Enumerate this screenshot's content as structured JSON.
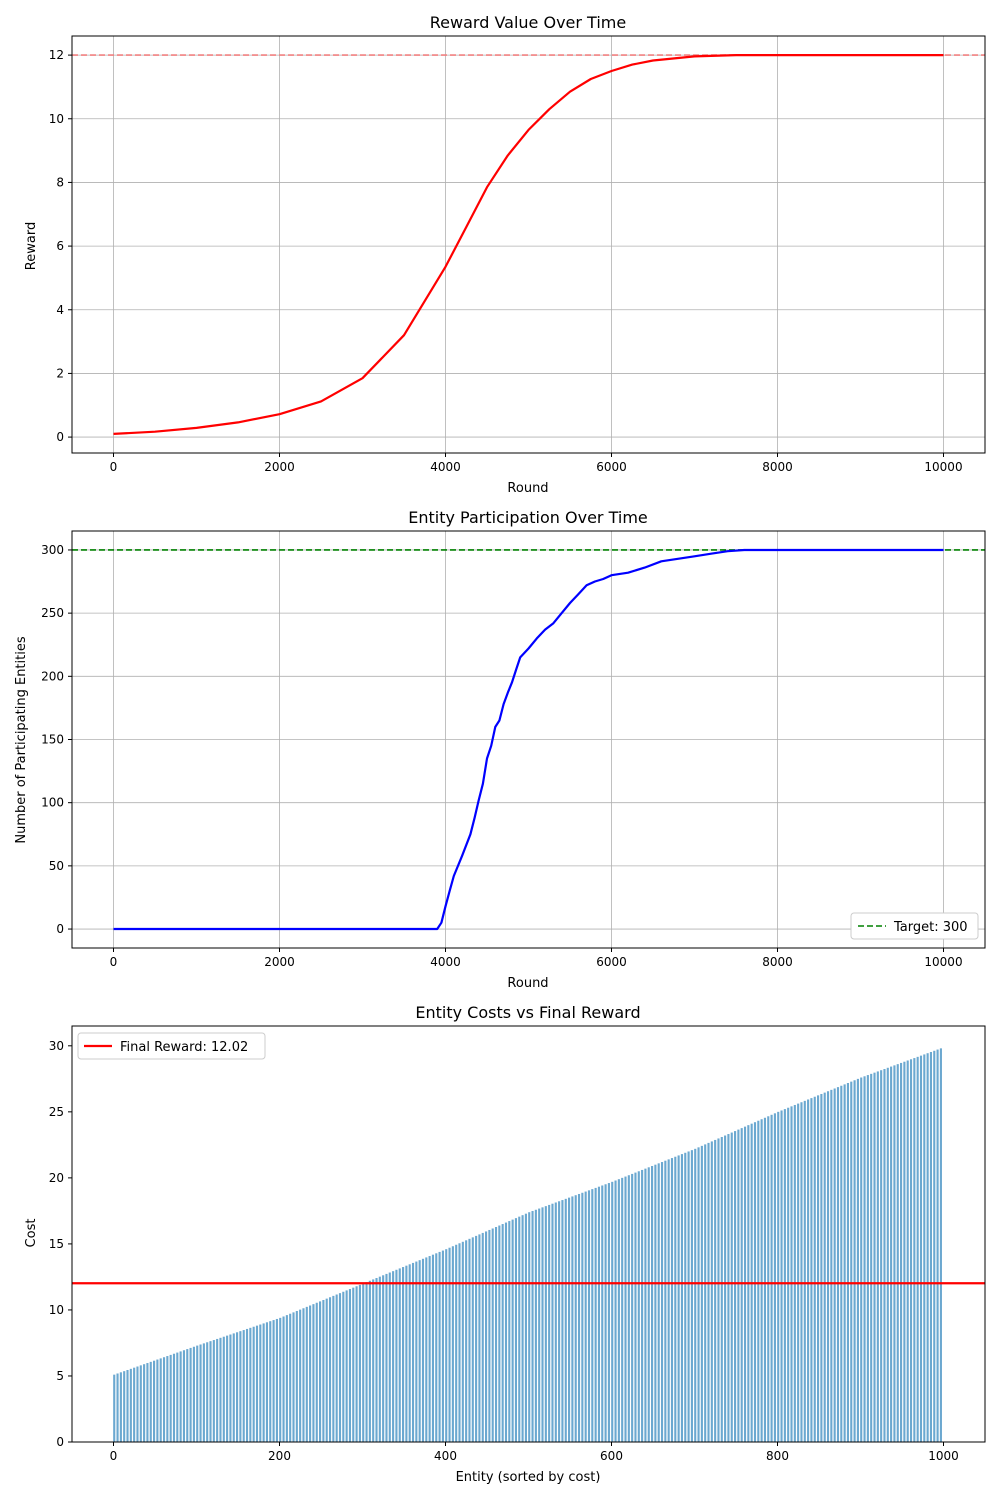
{
  "figure": {
    "background": "#ffffff",
    "colors": {
      "reward_line": "#ff0000",
      "reward_ref_line": "#f08080",
      "participation_line": "#0000ff",
      "target_line": "#008000",
      "cost_bars": "#5b9fcb",
      "final_reward_line": "#ff0000",
      "grid": "#b0b0b0"
    }
  },
  "chart_data": [
    {
      "type": "line",
      "title": "Reward Value Over Time",
      "xlabel": "Round",
      "ylabel": "Reward",
      "xlim": [
        -500,
        10500
      ],
      "ylim": [
        -0.5,
        12.6
      ],
      "xticks": [
        0,
        2000,
        4000,
        6000,
        8000,
        10000
      ],
      "yticks": [
        0,
        2,
        4,
        6,
        8,
        10,
        12
      ],
      "grid": true,
      "reference_line": {
        "y": 12,
        "style": "dashed"
      },
      "series": [
        {
          "x": [
            0,
            500,
            1000,
            1500,
            2000,
            2500,
            3000,
            3500,
            4000,
            4250,
            4500,
            4750,
            5000,
            5250,
            5500,
            5750,
            6000,
            6250,
            6500,
            7000,
            7500,
            8000,
            9000,
            10000
          ],
          "values": [
            0.1,
            0.17,
            0.29,
            0.46,
            0.72,
            1.12,
            1.85,
            3.2,
            5.35,
            6.6,
            7.85,
            8.85,
            9.65,
            10.3,
            10.85,
            11.25,
            11.5,
            11.7,
            11.83,
            11.96,
            12.0,
            12.0,
            12.0,
            12.0
          ]
        }
      ]
    },
    {
      "type": "line",
      "title": "Entity Participation Over Time",
      "xlabel": "Round",
      "ylabel": "Number of Participating Entities",
      "xlim": [
        -500,
        10500
      ],
      "ylim": [
        -15,
        315
      ],
      "xticks": [
        0,
        2000,
        4000,
        6000,
        8000,
        10000
      ],
      "yticks": [
        0,
        50,
        100,
        150,
        200,
        250,
        300
      ],
      "grid": true,
      "legend_position": "lower-right",
      "reference_line": {
        "y": 300,
        "style": "dashed",
        "legend": "Target: 300"
      },
      "series": [
        {
          "x": [
            0,
            3000,
            3900,
            3950,
            4000,
            4050,
            4100,
            4200,
            4300,
            4350,
            4400,
            4450,
            4500,
            4550,
            4600,
            4650,
            4700,
            4750,
            4800,
            4850,
            4900,
            5000,
            5100,
            5200,
            5300,
            5400,
            5500,
            5600,
            5700,
            5800,
            5900,
            6000,
            6200,
            6400,
            6600,
            6800,
            7000,
            7200,
            7400,
            7600,
            8000,
            9000,
            10000
          ],
          "values": [
            0,
            0,
            0,
            5,
            18,
            30,
            42,
            58,
            75,
            88,
            102,
            115,
            135,
            145,
            160,
            165,
            178,
            187,
            195,
            205,
            215,
            222,
            230,
            237,
            242,
            250,
            258,
            265,
            272,
            275,
            277,
            280,
            282,
            286,
            291,
            293,
            295,
            297,
            299,
            300,
            300,
            300,
            300
          ]
        }
      ]
    },
    {
      "type": "bar",
      "title": "Entity Costs vs Final Reward",
      "xlabel": "Entity (sorted by cost)",
      "ylabel": "Cost",
      "xlim": [
        -50,
        1050
      ],
      "ylim": [
        0,
        31.5
      ],
      "xticks": [
        0,
        200,
        400,
        600,
        800,
        1000
      ],
      "yticks": [
        0,
        5,
        10,
        15,
        20,
        25,
        30
      ],
      "grid": false,
      "legend_position": "top-left",
      "bar_count": 1000,
      "bar_step": 4,
      "cost_profile": {
        "x": [
          0,
          100,
          200,
          300,
          400,
          500,
          600,
          700,
          800,
          900,
          1000
        ],
        "values": [
          5.1,
          7.3,
          9.4,
          12.0,
          14.6,
          17.4,
          19.7,
          22.2,
          25.0,
          27.6,
          29.9
        ]
      },
      "reference_line": {
        "y": 12.02,
        "style": "solid",
        "legend": "Final Reward: 12.02"
      }
    }
  ]
}
